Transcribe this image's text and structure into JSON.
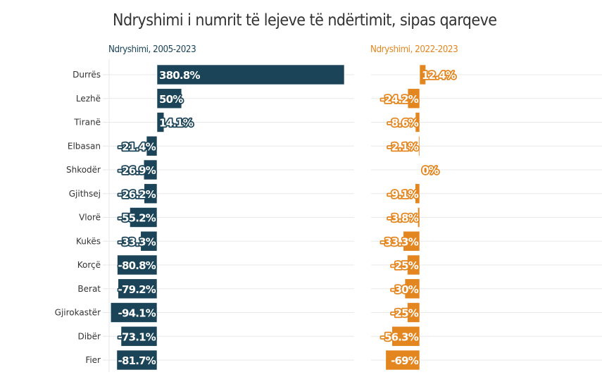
{
  "colors": {
    "left_series": "#1b4459",
    "right_series": "#e3861f",
    "gridline": "#e8e8e8",
    "title": "#333333"
  },
  "chart_data": {
    "type": "bar",
    "orientation": "horizontal",
    "title": "Ndryshimi i numrit të lejeve të ndërtimit, sipas qarqeve",
    "categories": [
      "Durrës",
      "Lezhë",
      "Tiranë",
      "Elbasan",
      "Shkodër",
      "Gjithsej",
      "Vlorë",
      "Kukës",
      "Korçë",
      "Berat",
      "Gjirokastër",
      "Dibër",
      "Fier"
    ],
    "series": [
      {
        "name": "Ndryshimi, 2005-2023",
        "values": [
          380.8,
          50,
          14.1,
          -21.4,
          -26.9,
          -26.2,
          -55.2,
          -33.3,
          -80.8,
          -79.2,
          -94.1,
          -73.1,
          -81.7
        ],
        "labels": [
          "380.8%",
          "50%",
          "14.1%",
          "-21.4%",
          "-26.9%",
          "-26.2%",
          "-55.2%",
          "-33.3%",
          "-80.8%",
          "-79.2%",
          "-94.1%",
          "-73.1%",
          "-81.7%"
        ],
        "xlim": [
          -100,
          400
        ]
      },
      {
        "name": "Ndryshimi, 2022-2023",
        "values": [
          12.4,
          -24.2,
          -8.6,
          -2.1,
          0,
          -9.1,
          -3.8,
          -33.3,
          -25,
          -30,
          -25,
          -56.3,
          -69
        ],
        "labels": [
          "12.4%",
          "-24.2%",
          "-8.6%",
          "-2.1%",
          "0%",
          "-9.1%",
          "-3.8%",
          "-33.3%",
          "-25%",
          "-30%",
          "-25%",
          "-56.3%",
          "-69%"
        ],
        "xlim": [
          -100,
          370
        ]
      }
    ],
    "xlabel": "",
    "ylabel": "",
    "grid": true,
    "legend": "none"
  }
}
